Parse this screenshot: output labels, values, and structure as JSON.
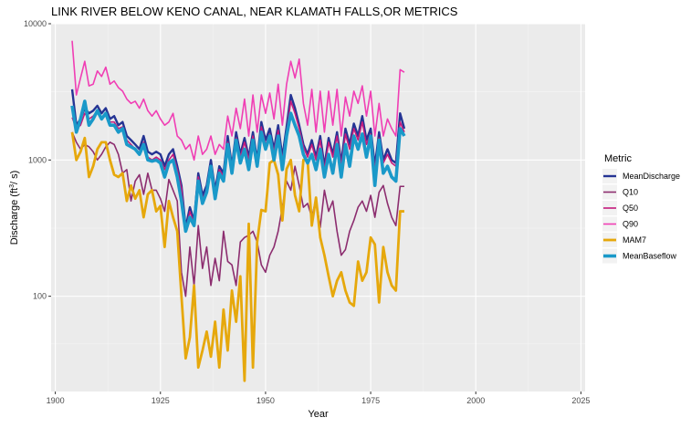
{
  "chart_data": {
    "type": "line",
    "title": "LINK RIVER BELOW KENO CANAL, NEAR KLAMATH FALLS,OR  METRICS",
    "xlabel": "Year",
    "ylabel_prefix": "Discharge (ft",
    "ylabel_sup": "3",
    "ylabel_suffix": "/ s)",
    "xlim": [
      1899,
      2026
    ],
    "ylim": [
      20,
      10000
    ],
    "yscale": "log",
    "xticks": [
      1900,
      1925,
      1950,
      1975,
      2000,
      2025
    ],
    "xtick_labels": [
      "1900",
      "1925",
      "1950",
      "1975",
      "2000",
      "2025"
    ],
    "yticks": [
      100,
      1000,
      10000
    ],
    "ytick_labels": [
      "100",
      "1000",
      "10000"
    ],
    "grid": true,
    "background": "#ebebeb",
    "legend": {
      "title": "Metric",
      "position": "right"
    },
    "years": [
      1904,
      1905,
      1906,
      1907,
      1908,
      1909,
      1910,
      1911,
      1912,
      1913,
      1914,
      1915,
      1916,
      1917,
      1918,
      1919,
      1920,
      1921,
      1922,
      1923,
      1924,
      1925,
      1926,
      1927,
      1928,
      1929,
      1930,
      1931,
      1932,
      1933,
      1934,
      1935,
      1936,
      1937,
      1938,
      1939,
      1940,
      1941,
      1942,
      1943,
      1944,
      1945,
      1946,
      1947,
      1948,
      1949,
      1950,
      1951,
      1952,
      1953,
      1954,
      1955,
      1956,
      1957,
      1958,
      1959,
      1960,
      1961,
      1962,
      1963,
      1964,
      1965,
      1966,
      1967,
      1968,
      1969,
      1970,
      1971,
      1972,
      1973,
      1974,
      1975,
      1976,
      1977,
      1978,
      1979,
      1980,
      1981,
      1982,
      1983
    ],
    "series": [
      {
        "name": "MeanDischarge",
        "color": "#253494",
        "width": 2.4,
        "values": [
          3300,
          1800,
          2000,
          2400,
          2200,
          2300,
          2500,
          2200,
          2400,
          2000,
          2100,
          1800,
          1900,
          1500,
          1400,
          1300,
          1200,
          1500,
          1150,
          1100,
          1150,
          1100,
          900,
          1100,
          1200,
          900,
          650,
          320,
          450,
          360,
          800,
          550,
          650,
          1000,
          600,
          900,
          800,
          1500,
          900,
          1600,
          1100,
          1450,
          1050,
          1600,
          1000,
          1900,
          1400,
          1700,
          1200,
          1800,
          1050,
          1750,
          3000,
          2400,
          1800,
          1300,
          1100,
          1400,
          1050,
          1500,
          900,
          1450,
          1100,
          1600,
          950,
          1700,
          1300,
          1850,
          1500,
          2100,
          1400,
          1700,
          900,
          1600,
          1000,
          1200,
          1000,
          950,
          2200,
          1700
        ]
      },
      {
        "name": "Q10",
        "color": "#8c2d6f",
        "width": 1.6,
        "values": [
          1600,
          1350,
          1200,
          1300,
          1250,
          1150,
          1000,
          1100,
          1250,
          1350,
          1300,
          1100,
          800,
          850,
          500,
          700,
          780,
          560,
          800,
          600,
          600,
          520,
          420,
          720,
          600,
          500,
          150,
          100,
          230,
          120,
          330,
          160,
          230,
          120,
          190,
          130,
          300,
          180,
          170,
          120,
          250,
          270,
          280,
          300,
          250,
          170,
          150,
          200,
          230,
          300,
          450,
          700,
          600,
          900,
          650,
          450,
          480,
          380,
          520,
          320,
          600,
          420,
          500,
          300,
          200,
          220,
          300,
          360,
          450,
          500,
          420,
          550,
          380,
          580,
          650,
          480,
          380,
          330,
          640,
          640
        ]
      },
      {
        "name": "Q50",
        "color": "#c51b7d",
        "width": 1.6,
        "values": [
          2050,
          1700,
          1800,
          2200,
          2000,
          2100,
          2300,
          2000,
          2200,
          1900,
          1900,
          1700,
          1750,
          1400,
          1300,
          1200,
          1100,
          1350,
          1050,
          1000,
          1050,
          1000,
          850,
          1000,
          1100,
          850,
          620,
          300,
          420,
          340,
          750,
          520,
          600,
          900,
          570,
          850,
          760,
          1350,
          850,
          1450,
          1050,
          1350,
          1000,
          1500,
          950,
          1750,
          1300,
          1550,
          1150,
          1650,
          1000,
          1600,
          2700,
          2200,
          1700,
          1250,
          1050,
          1300,
          1000,
          1400,
          850,
          1350,
          1050,
          1500,
          900,
          1550,
          1200,
          1700,
          1400,
          1900,
          1300,
          1550,
          850,
          1450,
          950,
          1100,
          950,
          900,
          1900,
          1600
        ]
      },
      {
        "name": "Q90",
        "color": "#f03eb4",
        "width": 1.6,
        "values": [
          7500,
          3000,
          4000,
          5300,
          3500,
          3600,
          4500,
          4100,
          4800,
          3600,
          3800,
          3400,
          3200,
          2800,
          2600,
          2700,
          2400,
          2800,
          2300,
          2100,
          2300,
          2000,
          1800,
          1900,
          2200,
          1500,
          1400,
          1200,
          1300,
          1000,
          1500,
          1100,
          1200,
          1500,
          1100,
          1300,
          1200,
          2100,
          1500,
          2400,
          1700,
          2800,
          1500,
          3000,
          1600,
          3000,
          2200,
          3100,
          2000,
          3600,
          1800,
          3600,
          5300,
          4000,
          5500,
          2600,
          1800,
          3300,
          1600,
          3200,
          1600,
          3200,
          1800,
          3300,
          1500,
          2900,
          2100,
          3200,
          2600,
          3500,
          2100,
          3200,
          1500,
          2600,
          1500,
          2000,
          1700,
          1500,
          4600,
          4400
        ]
      },
      {
        "name": "MAM7",
        "color": "#e6a80c",
        "width": 2.8,
        "values": [
          1600,
          1000,
          1150,
          1450,
          750,
          900,
          1200,
          1350,
          1350,
          1000,
          780,
          750,
          800,
          500,
          650,
          520,
          600,
          380,
          560,
          600,
          420,
          460,
          230,
          500,
          380,
          300,
          100,
          35,
          50,
          120,
          30,
          40,
          55,
          36,
          65,
          30,
          80,
          40,
          110,
          65,
          140,
          24,
          340,
          30,
          250,
          430,
          420,
          950,
          1000,
          780,
          360,
          860,
          1000,
          550,
          420,
          1000,
          1000,
          330,
          530,
          270,
          200,
          140,
          100,
          130,
          150,
          110,
          90,
          85,
          180,
          130,
          150,
          270,
          240,
          90,
          230,
          150,
          120,
          110,
          420,
          420
        ]
      },
      {
        "name": "MeanBaseflow",
        "color": "#1a99c9",
        "width": 3.6,
        "values": [
          2500,
          1600,
          2000,
          2700,
          1800,
          2000,
          2300,
          2000,
          2200,
          1800,
          1800,
          1600,
          1700,
          1300,
          1250,
          1200,
          1100,
          1300,
          1000,
          980,
          1000,
          950,
          750,
          950,
          1000,
          750,
          500,
          300,
          380,
          330,
          700,
          480,
          580,
          900,
          520,
          800,
          700,
          1300,
          800,
          1400,
          950,
          1200,
          850,
          1400,
          900,
          1600,
          1200,
          1500,
          1000,
          1500,
          850,
          1500,
          2200,
          1800,
          1500,
          1100,
          950,
          1100,
          850,
          1200,
          750,
          1100,
          800,
          1300,
          750,
          1300,
          900,
          1500,
          1200,
          1550,
          1050,
          1500,
          650,
          1400,
          800,
          900,
          750,
          700,
          1700,
          1500
        ]
      }
    ]
  }
}
